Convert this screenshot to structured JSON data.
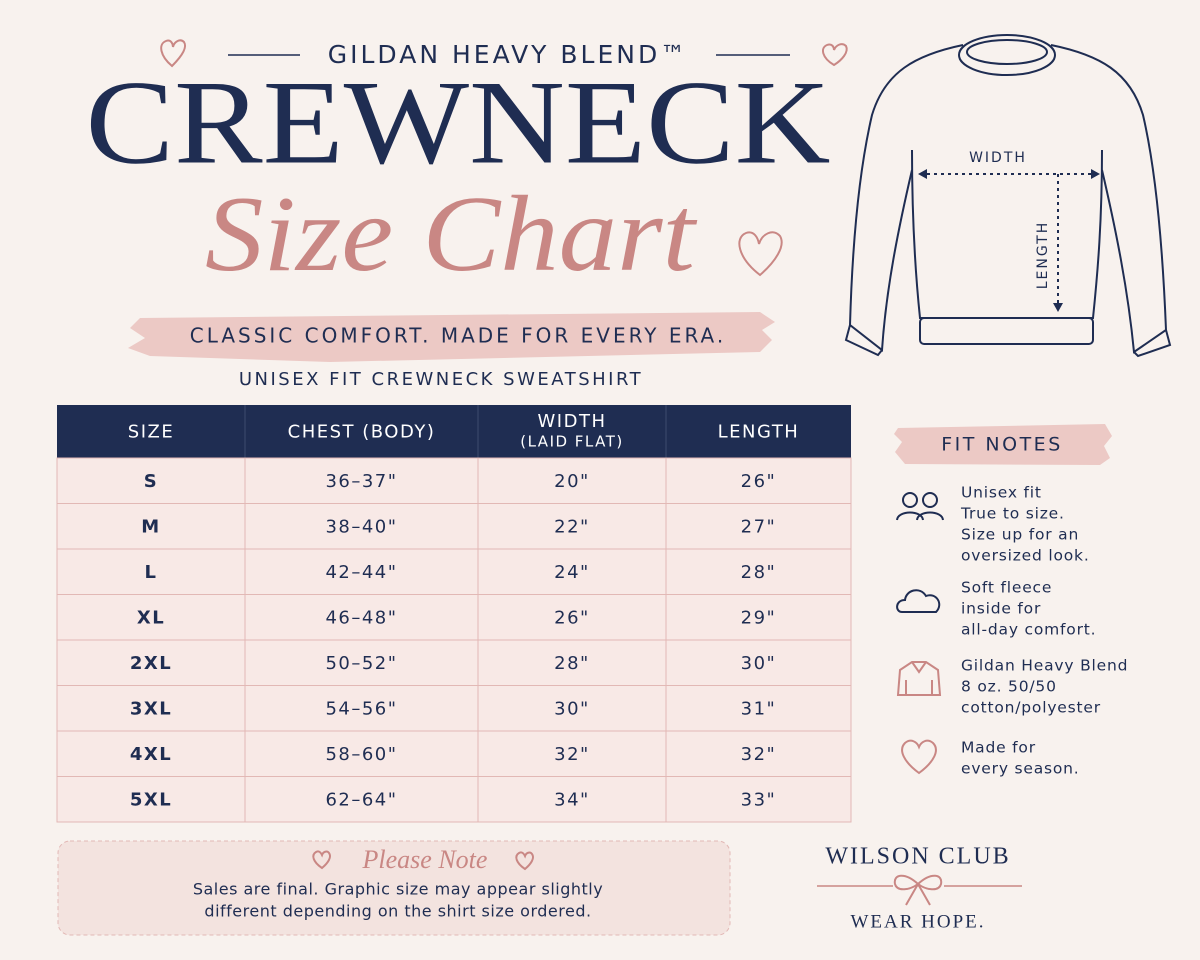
{
  "header": {
    "brand": "GILDAN HEAVY BLEND™",
    "title": "CREWNECK",
    "script_title": "Size Chart",
    "tagline": "CLASSIC COMFORT. MADE FOR EVERY ERA.",
    "subtitle": "UNISEX FIT CREWNECK SWEATSHIRT"
  },
  "diagram": {
    "width_label": "WIDTH",
    "length_label": "LENGTH"
  },
  "table": {
    "columns": [
      [
        "SIZE"
      ],
      [
        "CHEST (BODY)"
      ],
      [
        "WIDTH",
        "(LAID FLAT)"
      ],
      [
        "LENGTH"
      ]
    ],
    "rows": [
      [
        "S",
        "36–37\"",
        "20\"",
        "26\""
      ],
      [
        "M",
        "38–40\"",
        "22\"",
        "27\""
      ],
      [
        "L",
        "42–44\"",
        "24\"",
        "28\""
      ],
      [
        "XL",
        "46–48\"",
        "26\"",
        "29\""
      ],
      [
        "2XL",
        "50–52\"",
        "28\"",
        "30\""
      ],
      [
        "3XL",
        "54–56\"",
        "30\"",
        "31\""
      ],
      [
        "4XL",
        "58–60\"",
        "32\"",
        "32\""
      ],
      [
        "5XL",
        "62–64\"",
        "34\"",
        "33\""
      ]
    ]
  },
  "fit_notes": {
    "title": "FIT NOTES",
    "items": [
      {
        "lines": [
          "Unisex fit",
          "True to size.",
          "Size up for an",
          "oversized look."
        ]
      },
      {
        "lines": [
          "Soft fleece",
          "inside for",
          "all-day comfort."
        ]
      },
      {
        "lines": [
          "Gildan Heavy Blend",
          "8 oz. 50/50",
          "cotton/polyester"
        ]
      },
      {
        "lines": [
          "Made for",
          "every season."
        ]
      }
    ]
  },
  "note": {
    "title": "Please Note",
    "lines": [
      "Sales are final. Graphic size may appear slightly",
      "different depending on the shirt size ordered."
    ]
  },
  "brand": {
    "name": "WILSON CLUB",
    "tagline": "WEAR HOPE."
  }
}
